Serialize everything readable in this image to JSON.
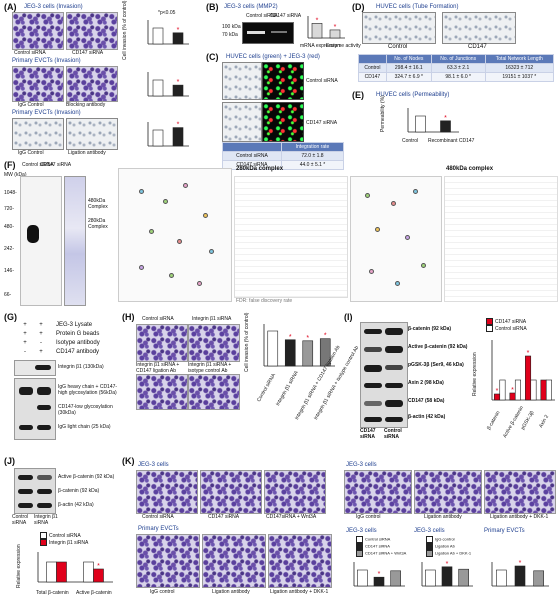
{
  "A": {
    "label": "(A)",
    "row1_title": "JEG-3 cells (Invasion)",
    "row1_img1": "Control siRNA",
    "row1_img2": "CD147 siRNA",
    "row1_legend_p": "*p<0.05",
    "row2_title": "Primary EVCTs (Invasion)",
    "row2_img1": "IgG Control",
    "row2_img2": "Blocking antibody",
    "row3_title": "Primary EVCTs (Invasion)",
    "row3_img1": "IgG Control",
    "row3_img2": "Ligation antibody",
    "ylabel": "Cell invasion (% of control)"
  },
  "B": {
    "label": "(B)",
    "title": "JEG-3 cells (MMP2)",
    "lanes": [
      "Control siRNA",
      "CD147 siRNA"
    ],
    "bands": [
      "100 kDa",
      "70 kDa"
    ],
    "xlabels": [
      "mRNA expression",
      "Enzyme activity"
    ]
  },
  "C": {
    "label": "(C)",
    "title": "HUVEC cells (green) + JEG-3 (red)",
    "row1": "Control siRNA",
    "row2": "CD147 siRNA",
    "table_header": "Integration rate",
    "table_rows": [
      {
        "name": "Control siRNA",
        "value": "72.0 ± 1.8"
      },
      {
        "name": "CD147 siRNA",
        "value": "44.0 ± 5.1 *"
      }
    ]
  },
  "D": {
    "label": "(D)",
    "title": "HUVEC cells (Tube Formation)",
    "img1": "Control",
    "img2": "CD147",
    "headers": [
      "",
      "No. of Nodes",
      "No. of Junctions",
      "Total Network Length"
    ],
    "rows": [
      [
        "Control",
        "298.4 ± 16.1",
        "63.3 ± 2.1",
        "16323 ± 712"
      ],
      [
        "CD147",
        "324.7 ± 6.9 *",
        "98.1 ± 6.0 *",
        "19151 ± 1037 *"
      ]
    ]
  },
  "E": {
    "label": "(E)",
    "title": "HUVEC cells (Permeability)",
    "ylabel": "Permeability (%)",
    "xlabels": [
      "Control",
      "Recombinant CD147"
    ]
  },
  "F": {
    "label": "(F)",
    "mw_title": "MW (kDa)",
    "mw": [
      "1048-",
      "720-",
      "480-",
      "242-",
      "146-",
      "66-"
    ],
    "lanes": [
      "Control siRNA",
      "CD147 siRNA"
    ],
    "arrow1": "480kDa Complex",
    "arrow2": "280kDa Complex",
    "net1_title": "280kDa complex",
    "net2_title": "480kDa complex",
    "fdr_note": "FDR: false discovery rate"
  },
  "G": {
    "label": "(G)",
    "rows": [
      "JEG-3 Lysate",
      "Protein G beads",
      "Isotype antibody",
      "CD147 antibody"
    ],
    "signs": [
      [
        "+",
        "+"
      ],
      [
        "+",
        "+"
      ],
      [
        "+",
        "-"
      ],
      [
        "-",
        "+"
      ]
    ],
    "band_top": "Integrin β1 (130kDa)",
    "band_labels": [
      "IgG heavy chain + CD147-high glycosylation (56kDa)",
      "CD147-low glycosylation (30kDa)",
      "IgG light chain (25 kDa)"
    ]
  },
  "H": {
    "label": "(H)",
    "imgs": [
      "Control siRNA",
      "Integrin β1 siRNA",
      "Integrin β1 siRNA + CD147 ligation Ab",
      "Integrin β1 siRNA + isotype control Ab"
    ],
    "ylabel": "Cell invasion (% of control)",
    "xlabels": [
      "Control siRNA",
      "Integrin β1 siRNA",
      "Integrin β1 siRNA + CD147 ligation Ab",
      "Integrin β1 siRNA + isotype control Ab"
    ]
  },
  "I": {
    "label": "(I)",
    "bands": [
      "β-catenin (92 kDa)",
      "Active β-catenin (92 kDa)",
      "pGSK-3β (Ser9, 46 kDa)",
      "Axin 2 (98 kDa)",
      "CD147 (58 kDa)",
      "β-actin (42 kDa)"
    ],
    "lanes": [
      "CD147 siRNA",
      "Control siRNA"
    ],
    "legend": [
      "CD147 siRNA",
      "Control siRNA"
    ],
    "ylabel": "Relative expression",
    "xlabels": [
      "β-catenin",
      "Active β-catenin",
      "pGSK-3β",
      "Axin 2"
    ]
  },
  "J": {
    "label": "(J)",
    "bands": [
      "Active β-catenin (92 kDa)",
      "β-catenin (92 kDa)",
      "β-actin (42 kDa)"
    ],
    "lanes": [
      "Control siRNA",
      "Integrin β1 siRNA"
    ],
    "legend": [
      "Control siRNA",
      "Integrin β1 siRNA"
    ],
    "ylabel": "Relative expression",
    "xlabels": [
      "Total β-catenin",
      "Active β-catenin"
    ]
  },
  "K": {
    "label": "(K)",
    "t1": "JEG-3 cells",
    "t2": "JEG-3 cells",
    "t3": "Primary EVCTs",
    "row1_imgs": [
      "Control siRNA",
      "CD147 siRNA",
      "CD147siRNA + Wnt3A"
    ],
    "row1b_imgs": [
      "IgG control",
      "Ligation antibody",
      "Ligation antibody + DKK-1"
    ],
    "row2_imgs": [
      "IgG control",
      "Ligation antibody",
      "Ligation antibody + DKK-1"
    ],
    "chart_titles": [
      "JEG-3 cells",
      "JEG-3 cells",
      "Primary EVCTs"
    ],
    "legend1": [
      "Control siRNA",
      "CD147 siRNA",
      "CD147 siRNA + Wnt3A"
    ],
    "legend2": [
      "IgG control",
      "Ligation Ab",
      "Ligation Ab + DKK-1"
    ]
  },
  "chart_data": [
    {
      "type": "bar",
      "panel": "A-1",
      "categories": [
        "Control siRNA",
        "CD147 siRNA"
      ],
      "values": [
        100,
        70
      ],
      "ylim": [
        0,
        150
      ]
    },
    {
      "type": "bar",
      "panel": "A-2",
      "categories": [
        "IgG Control",
        "Blocking antibody"
      ],
      "values": [
        100,
        68
      ],
      "ylim": [
        0,
        150
      ]
    },
    {
      "type": "bar",
      "panel": "A-3",
      "categories": [
        "IgG Control",
        "Ligation antibody"
      ],
      "values": [
        100,
        115
      ],
      "ylim": [
        0,
        150
      ]
    },
    {
      "type": "bar",
      "panel": "B",
      "categories": [
        "mRNA expression",
        "Enzyme activity"
      ],
      "series": [
        {
          "values": [
            100,
            55
          ]
        }
      ],
      "ylim": [
        0,
        150
      ]
    },
    {
      "type": "bar",
      "panel": "E",
      "categories": [
        "Control",
        "Recombinant CD147"
      ],
      "values": [
        100,
        70
      ],
      "ylim": [
        0,
        150
      ]
    },
    {
      "type": "bar",
      "panel": "H",
      "categories": [
        "Control siRNA",
        "Integrin β1 siRNA",
        "Integrin β1 siRNA + CD147 ligation Ab",
        "Integrin β1 siRNA + isotype control Ab"
      ],
      "values": [
        100,
        75,
        72,
        78
      ],
      "ylim": [
        0,
        120
      ]
    },
    {
      "type": "bar",
      "panel": "I",
      "categories": [
        "β-catenin",
        "Active β-catenin",
        "pGSK-3β",
        "Axin 2"
      ],
      "series": [
        {
          "name": "CD147 siRNA",
          "values": [
            0.3,
            0.35,
            2.2,
            1.0
          ]
        },
        {
          "name": "Control siRNA",
          "values": [
            1.0,
            1.0,
            1.0,
            1.0
          ]
        }
      ],
      "ylim": [
        0,
        3
      ]
    },
    {
      "type": "bar",
      "panel": "J",
      "categories": [
        "Total β-catenin",
        "Active β-catenin"
      ],
      "series": [
        {
          "name": "Control siRNA",
          "values": [
            100,
            100
          ]
        },
        {
          "name": "Integrin β1 siRNA",
          "values": [
            100,
            65
          ]
        }
      ],
      "ylim": [
        0,
        150
      ]
    },
    {
      "type": "bar",
      "panel": "K-1",
      "categories": [
        "Control siRNA",
        "CD147 siRNA",
        "CD147 siRNA + Wnt3A"
      ],
      "values": [
        100,
        55,
        95
      ],
      "ylim": [
        0,
        150
      ]
    },
    {
      "type": "bar",
      "panel": "K-2",
      "categories": [
        "IgG control",
        "Ligation Ab",
        "Ligation Ab + DKK-1"
      ],
      "values": [
        100,
        120,
        105
      ],
      "ylim": [
        0,
        150
      ]
    },
    {
      "type": "bar",
      "panel": "K-3",
      "categories": [
        "IgG control",
        "Ligation Ab",
        "Ligation Ab + DKK-1"
      ],
      "values": [
        100,
        125,
        95
      ],
      "ylim": [
        0,
        150
      ]
    }
  ]
}
